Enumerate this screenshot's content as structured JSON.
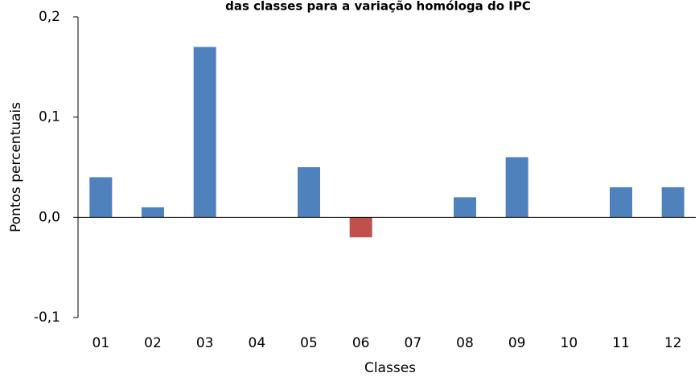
{
  "chart_data": {
    "type": "bar",
    "title": "das classes para a variação homóloga do IPC",
    "x_label": "Classes",
    "y_label": "Pontos percentuais",
    "categories": [
      "01",
      "02",
      "03",
      "04",
      "05",
      "06",
      "07",
      "08",
      "09",
      "10",
      "11",
      "12"
    ],
    "values": [
      0.04,
      0.01,
      0.17,
      0,
      0.05,
      -0.02,
      0,
      0.02,
      0.06,
      0,
      0.03,
      0.03
    ],
    "colors": [
      "#4f81bd",
      "#4f81bd",
      "#4f81bd",
      "#4f81bd",
      "#4f81bd",
      "#c0504d",
      "#4f81bd",
      "#4f81bd",
      "#4f81bd",
      "#4f81bd",
      "#4f81bd",
      "#4f81bd"
    ],
    "ylim": [
      -0.1,
      0.2
    ],
    "yticks": [
      {
        "value": -0.1,
        "label": "-0,1"
      },
      {
        "value": 0,
        "label": "0,0"
      },
      {
        "value": 0.1,
        "label": "0,1"
      },
      {
        "value": 0.2,
        "label": "0,2"
      }
    ]
  }
}
